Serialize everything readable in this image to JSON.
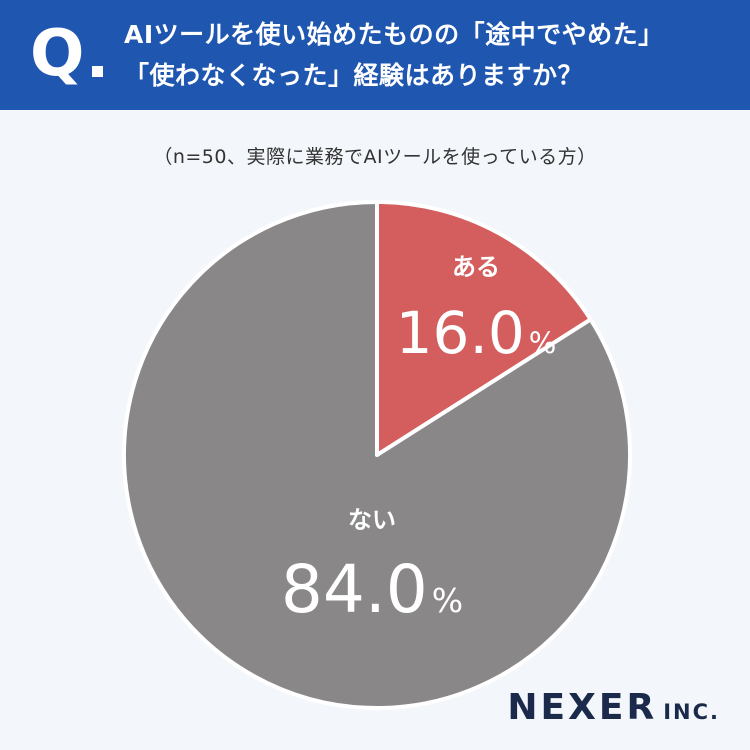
{
  "header": {
    "q_label": "Q",
    "question_line1": "AIツールを使い始めたものの「途中でやめた」",
    "question_line2": "「使わなくなった」経験はありますか？"
  },
  "sample_note": "（n=50、実際に業務でAIツールを使っている方）",
  "colors": {
    "header_bg": "#1e56b0",
    "page_bg": "#f3f6fb",
    "slice_yes": "#d45d5d",
    "slice_no": "#8a8788"
  },
  "chart_data": {
    "type": "pie",
    "slices": [
      {
        "label": "ある",
        "value": 16.0,
        "value_text": "16.0",
        "unit": "%",
        "color": "#d45d5d"
      },
      {
        "label": "ない",
        "value": 84.0,
        "value_text": "84.0",
        "unit": "%",
        "color": "#8a8788"
      }
    ]
  },
  "logo": {
    "main": "NEXER",
    "sub": "INC."
  }
}
